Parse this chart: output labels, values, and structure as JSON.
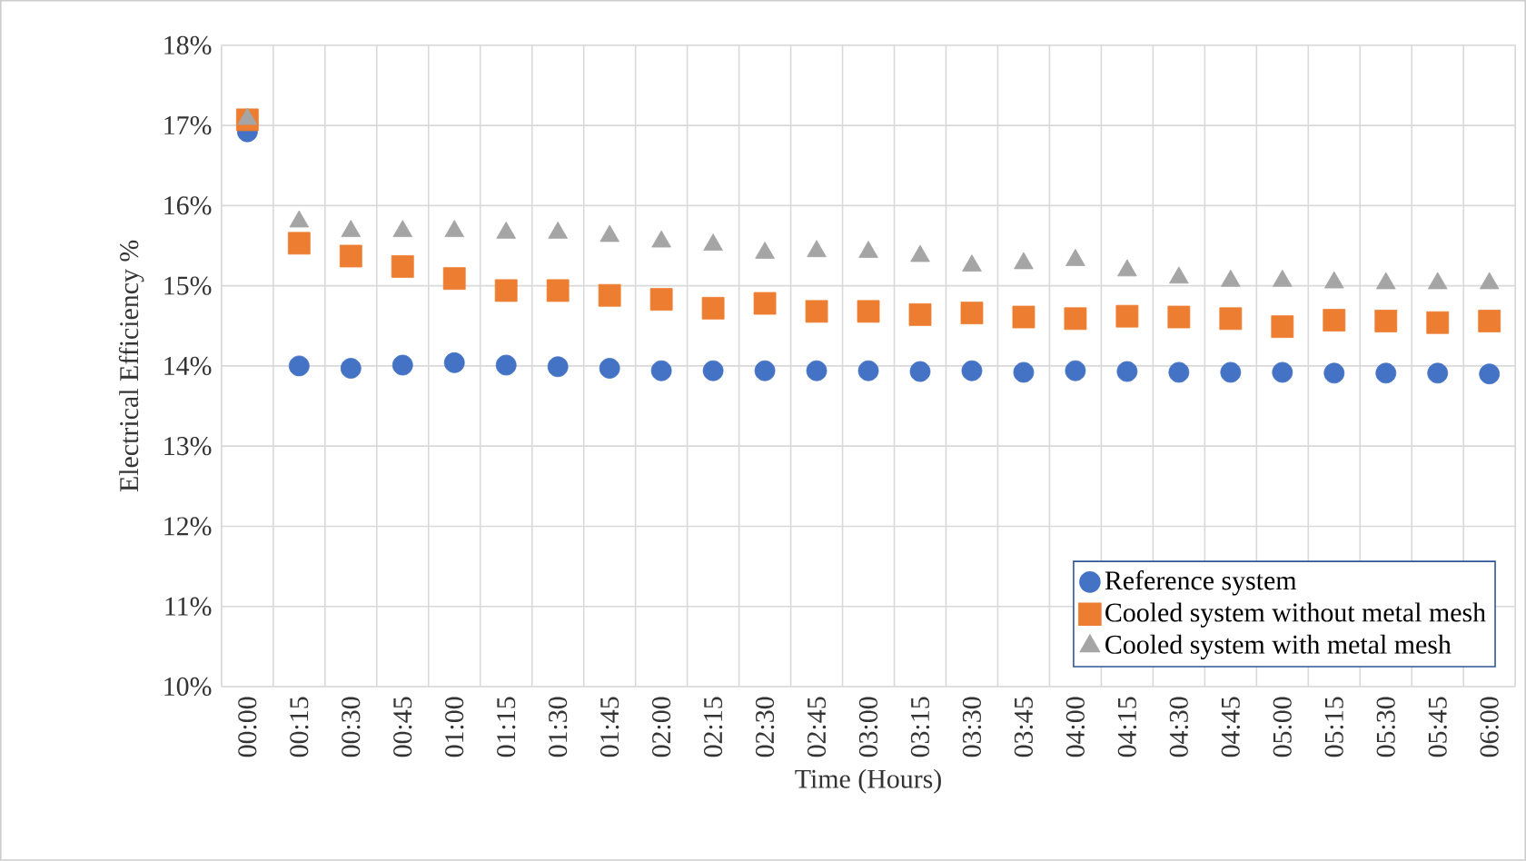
{
  "chart_data": {
    "type": "scatter",
    "xlabel": "Time (Hours)",
    "ylabel": "Electrical Efficiency %",
    "categories": [
      "00:00",
      "00:15",
      "00:30",
      "00:45",
      "01:00",
      "01:15",
      "01:30",
      "01:45",
      "02:00",
      "02:15",
      "02:30",
      "02:45",
      "03:00",
      "03:15",
      "03:30",
      "03:45",
      "04:00",
      "04:15",
      "04:30",
      "04:45",
      "05:00",
      "05:15",
      "05:30",
      "05:45",
      "06:00"
    ],
    "series": [
      {
        "name": "Reference system",
        "color": "#4472c4",
        "marker": "circle",
        "values": [
          16.92,
          14.0,
          13.97,
          14.01,
          14.04,
          14.01,
          13.99,
          13.97,
          13.94,
          13.94,
          13.94,
          13.94,
          13.94,
          13.93,
          13.94,
          13.92,
          13.94,
          13.93,
          13.92,
          13.92,
          13.92,
          13.91,
          13.91,
          13.91,
          13.9
        ]
      },
      {
        "name": "Cooled system without metal mesh",
        "color": "#ed7d31",
        "marker": "square",
        "values": [
          17.07,
          15.53,
          15.37,
          15.24,
          15.09,
          14.94,
          14.94,
          14.88,
          14.83,
          14.72,
          14.78,
          14.68,
          14.68,
          14.64,
          14.66,
          14.61,
          14.59,
          14.62,
          14.61,
          14.59,
          14.49,
          14.57,
          14.56,
          14.54,
          14.56
        ]
      },
      {
        "name": "Cooled system with metal mesh",
        "color": "#a5a5a5",
        "marker": "triangle",
        "values": [
          17.08,
          15.8,
          15.68,
          15.68,
          15.68,
          15.66,
          15.66,
          15.62,
          15.55,
          15.51,
          15.41,
          15.43,
          15.42,
          15.37,
          15.25,
          15.28,
          15.32,
          15.19,
          15.1,
          15.06,
          15.06,
          15.04,
          15.03,
          15.03,
          15.03
        ]
      }
    ],
    "ylim": [
      10,
      18
    ],
    "yticks": [
      {
        "value": 10,
        "label": "10%"
      },
      {
        "value": 11,
        "label": "11%"
      },
      {
        "value": 12,
        "label": "12%"
      },
      {
        "value": 13,
        "label": "13%"
      },
      {
        "value": 14,
        "label": "14%"
      },
      {
        "value": 15,
        "label": "15%"
      },
      {
        "value": 16,
        "label": "16%"
      },
      {
        "value": 17,
        "label": "17%"
      },
      {
        "value": 18,
        "label": "18%"
      }
    ],
    "grid": true,
    "legend": "bottom right"
  }
}
